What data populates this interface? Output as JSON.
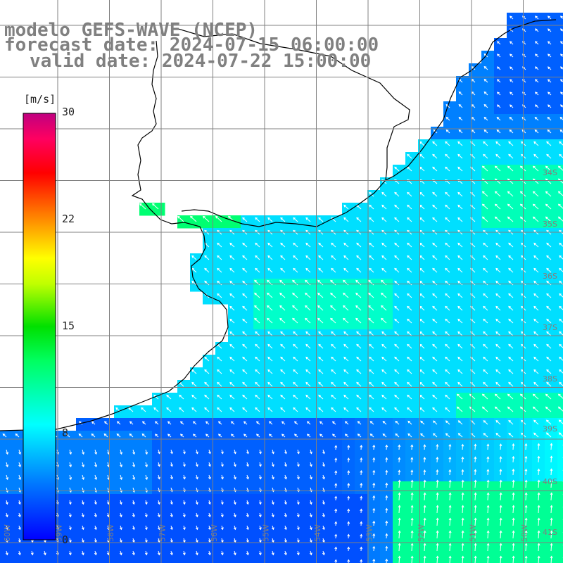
{
  "title": {
    "model": "modelo GEFS-WAVE (NCEP)",
    "forecast": "forecast date: 2024-07-15 06:00:00",
    "valid": "valid date: 2024-07-22 15:00:00"
  },
  "colorbar": {
    "unit": "[m/s]",
    "min": 0,
    "max": 30,
    "ticks": [
      "30",
      "22",
      "15",
      "8",
      "0"
    ],
    "tick_values": [
      30,
      22,
      15,
      8,
      0
    ],
    "colors": [
      "#0000ff",
      "#00a0ff",
      "#00ffff",
      "#00ff80",
      "#00c000",
      "#a0ff00",
      "#ffff00",
      "#ff8000",
      "#ff0000",
      "#ff0080",
      "#c00080"
    ]
  },
  "lat_labels": [
    "34S",
    "35S",
    "36S",
    "37S",
    "38S",
    "39S",
    "40S",
    "41S"
  ],
  "lon_labels": [
    "60W",
    "59W",
    "58W",
    "57W",
    "56W",
    "55W",
    "54W",
    "53W",
    "52W",
    "51W",
    "50W"
  ],
  "colors": {
    "land": "#ffffff",
    "coastline": "#000000",
    "grid": "#808080",
    "arrow": "#ffffff",
    "label": "#808080"
  }
}
